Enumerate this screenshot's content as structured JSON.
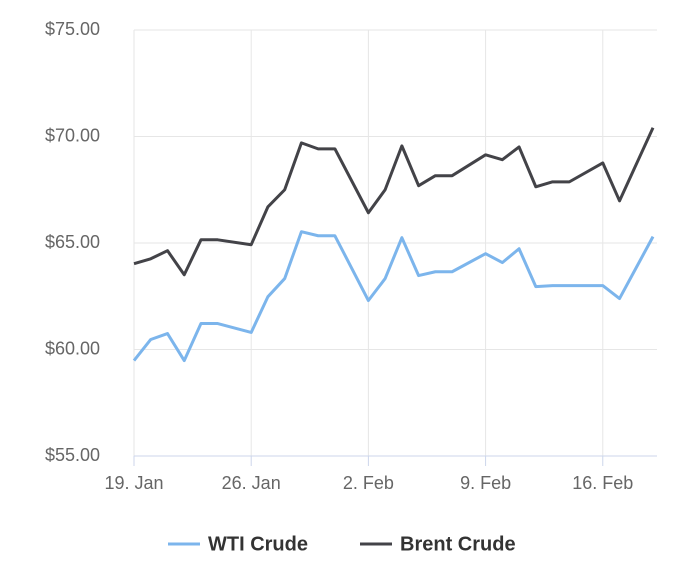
{
  "chart_data": {
    "type": "line",
    "x": [
      0,
      1,
      2,
      3,
      4,
      5,
      7,
      8,
      9,
      10,
      11,
      12,
      14,
      15,
      16,
      17,
      18,
      19,
      21,
      22,
      23,
      24,
      25,
      26,
      28,
      29,
      31
    ],
    "series": [
      {
        "name": "WTI Crude",
        "color": "#7cb5ec",
        "values": [
          59.48,
          60.47,
          60.75,
          59.48,
          61.22,
          61.22,
          60.8,
          62.48,
          63.33,
          65.53,
          65.34,
          65.34,
          62.3,
          63.33,
          65.25,
          63.47,
          63.65,
          63.65,
          64.5,
          64.08,
          64.73,
          62.95,
          63.0,
          63.0,
          63.0,
          62.39,
          65.3
        ]
      },
      {
        "name": "Brent Crude",
        "color": "#434348",
        "values": [
          64.03,
          64.26,
          64.64,
          63.51,
          65.15,
          65.15,
          64.92,
          66.7,
          67.5,
          69.7,
          69.42,
          69.42,
          66.42,
          67.5,
          69.56,
          67.69,
          68.16,
          68.16,
          69.14,
          68.91,
          69.51,
          67.64,
          67.87,
          67.87,
          68.76,
          66.98,
          70.41
        ]
      }
    ],
    "xlim": [
      0,
      31
    ],
    "xticks": [
      {
        "value": 0,
        "label": "19. Jan"
      },
      {
        "value": 7,
        "label": "26. Jan"
      },
      {
        "value": 14,
        "label": "2. Feb"
      },
      {
        "value": 21,
        "label": "9. Feb"
      },
      {
        "value": 28,
        "label": "16. Feb"
      }
    ],
    "ylim": [
      55,
      75
    ],
    "yticks": [
      {
        "value": 55,
        "label": "$55.00"
      },
      {
        "value": 60,
        "label": "$60.00"
      },
      {
        "value": 65,
        "label": "$65.00"
      },
      {
        "value": 70,
        "label": "$70.00"
      },
      {
        "value": 75,
        "label": "$75.00"
      }
    ],
    "grid": true,
    "legend": "bottom"
  }
}
